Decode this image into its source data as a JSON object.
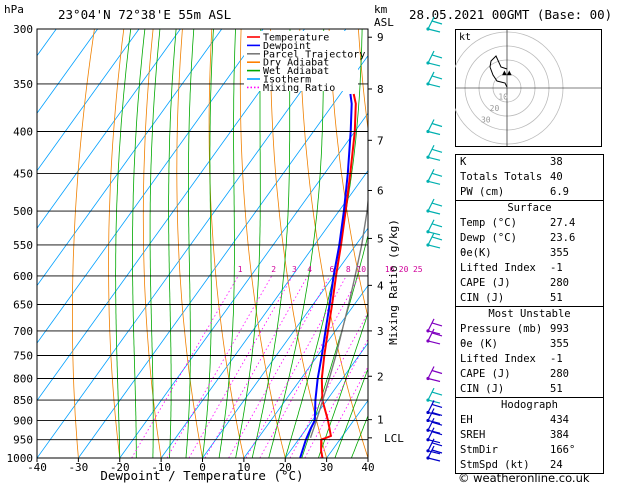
{
  "header": {
    "hpa_unit": "hPa",
    "location": "23°04'N  72°38'E  55m  ASL",
    "km_unit": "km",
    "asl_unit": "ASL",
    "datetime": "28.05.2021  00GMT  (Base: 00)"
  },
  "chart_data": {
    "type": "line",
    "xlabel": "Dewpoint / Temperature (°C)",
    "ylabel_right": "Mixing Ratio (g/kg)",
    "x_ticks": [
      -40,
      -30,
      -20,
      -10,
      0,
      10,
      20,
      30,
      40
    ],
    "xlim": [
      -40,
      40
    ],
    "y_scale": "log",
    "pressure_levels": [
      300,
      350,
      400,
      450,
      500,
      550,
      600,
      650,
      700,
      750,
      800,
      850,
      900,
      950,
      1000
    ],
    "ylim_hpa": [
      1000,
      300
    ],
    "km_ticks": [
      {
        "label": "1",
        "p": 898
      },
      {
        "label": "2",
        "p": 795
      },
      {
        "label": "3",
        "p": 700
      },
      {
        "label": "4",
        "p": 616
      },
      {
        "label": "5",
        "p": 540
      },
      {
        "label": "6",
        "p": 472
      },
      {
        "label": "7",
        "p": 410
      },
      {
        "label": "8",
        "p": 355
      },
      {
        "label": "9",
        "p": 307
      },
      {
        "label": "LCL",
        "p": 945
      }
    ],
    "mixing_ratio_labels": [
      "1",
      "2",
      "3",
      "4",
      "6",
      "8",
      "10",
      "16",
      "20",
      "25"
    ],
    "mixing_ratio_values": [
      1,
      2,
      3,
      4,
      6,
      8,
      10,
      16,
      20,
      25
    ],
    "legend": {
      "placement": "top-right",
      "entries": [
        {
          "name": "Temperature",
          "color": "#ff0000",
          "dash": "solid"
        },
        {
          "name": "Dewpoint",
          "color": "#0000ff",
          "dash": "solid"
        },
        {
          "name": "Parcel Trajectory",
          "color": "#7a7a7a",
          "dash": "solid"
        },
        {
          "name": "Dry Adiabat",
          "color": "#ff8000",
          "dash": "solid"
        },
        {
          "name": "Wet Adiabat",
          "color": "#00a800",
          "dash": "solid"
        },
        {
          "name": "Isotherm",
          "color": "#00a0ff",
          "dash": "solid"
        },
        {
          "name": "Mixing Ratio",
          "color": "#ff00ff",
          "dash": "dotted"
        }
      ]
    },
    "series": [
      {
        "name": "Temperature",
        "color": "#ff0000",
        "points": [
          {
            "p": 1000,
            "t": 29.0
          },
          {
            "p": 980,
            "t": 27.4
          },
          {
            "p": 950,
            "t": 25.5
          },
          {
            "p": 940,
            "t": 27.2
          },
          {
            "p": 900,
            "t": 23.8
          },
          {
            "p": 850,
            "t": 18.9
          },
          {
            "p": 800,
            "t": 15.0
          },
          {
            "p": 750,
            "t": 11.6
          },
          {
            "p": 700,
            "t": 8.2
          },
          {
            "p": 650,
            "t": 4.6
          },
          {
            "p": 600,
            "t": 0.6
          },
          {
            "p": 550,
            "t": -3.6
          },
          {
            "p": 500,
            "t": -8.4
          },
          {
            "p": 450,
            "t": -13.8
          },
          {
            "p": 400,
            "t": -20.0
          },
          {
            "p": 370,
            "t": -24.6
          },
          {
            "p": 360,
            "t": -26.8
          }
        ]
      },
      {
        "name": "Dewpoint",
        "color": "#0000ff",
        "points": [
          {
            "p": 1000,
            "t": 23.6
          },
          {
            "p": 950,
            "t": 21.8
          },
          {
            "p": 920,
            "t": 21.0
          },
          {
            "p": 900,
            "t": 20.6
          },
          {
            "p": 850,
            "t": 17.2
          },
          {
            "p": 800,
            "t": 14.0
          },
          {
            "p": 750,
            "t": 11.0
          },
          {
            "p": 700,
            "t": 7.6
          },
          {
            "p": 650,
            "t": 4.0
          },
          {
            "p": 600,
            "t": 0.0
          },
          {
            "p": 550,
            "t": -4.0
          },
          {
            "p": 500,
            "t": -8.8
          },
          {
            "p": 450,
            "t": -14.4
          },
          {
            "p": 400,
            "t": -21.0
          },
          {
            "p": 370,
            "t": -25.6
          },
          {
            "p": 360,
            "t": -27.6
          }
        ]
      },
      {
        "name": "Parcel Trajectory",
        "color": "#7a7a7a",
        "points": [
          {
            "p": 945,
            "t": 22.6
          },
          {
            "p": 900,
            "t": 21.0
          },
          {
            "p": 850,
            "t": 19.0
          },
          {
            "p": 800,
            "t": 16.8
          },
          {
            "p": 750,
            "t": 14.4
          },
          {
            "p": 700,
            "t": 11.6
          },
          {
            "p": 650,
            "t": 8.6
          },
          {
            "p": 600,
            "t": 5.2
          },
          {
            "p": 550,
            "t": 1.4
          },
          {
            "p": 500,
            "t": -3.2
          },
          {
            "p": 450,
            "t": -8.8
          },
          {
            "p": 400,
            "t": -15.4
          },
          {
            "p": 360,
            "t": -21.8
          }
        ]
      }
    ]
  },
  "wind_barb_pressures": [
    300,
    330,
    350,
    400,
    430,
    460,
    500,
    530,
    550,
    700,
    720,
    800,
    850,
    880,
    900,
    925,
    950,
    980,
    1000
  ],
  "hodograph": {
    "unit_label": "kt",
    "ring_labels": [
      "10",
      "20",
      "30"
    ]
  },
  "indices": [
    {
      "label": "K",
      "value": "38"
    },
    {
      "label": "Totals Totals",
      "value": "40"
    },
    {
      "label": "PW (cm)",
      "value": "6.9"
    }
  ],
  "surface": {
    "title": "Surface",
    "rows": [
      {
        "label": "Temp (°C)",
        "value": "27.4"
      },
      {
        "label": "Dewp (°C)",
        "value": "23.6"
      },
      {
        "label": "θe(K)",
        "value": "355"
      },
      {
        "label": "Lifted Index",
        "value": "-1"
      },
      {
        "label": "CAPE (J)",
        "value": "280"
      },
      {
        "label": "CIN (J)",
        "value": "51"
      }
    ]
  },
  "most_unstable": {
    "title": "Most Unstable",
    "rows": [
      {
        "label": "Pressure (mb)",
        "value": "993"
      },
      {
        "label": "θe (K)",
        "value": "355"
      },
      {
        "label": "Lifted Index",
        "value": "-1"
      },
      {
        "label": "CAPE (J)",
        "value": "280"
      },
      {
        "label": "CIN (J)",
        "value": "51"
      }
    ]
  },
  "hodograph_stats": {
    "title": "Hodograph",
    "rows": [
      {
        "label": "EH",
        "value": "434"
      },
      {
        "label": "SREH",
        "value": "384"
      },
      {
        "label": "StmDir",
        "value": "166°"
      },
      {
        "label": "StmSpd (kt)",
        "value": "24"
      }
    ]
  },
  "footer": "© weatheronline.co.uk"
}
